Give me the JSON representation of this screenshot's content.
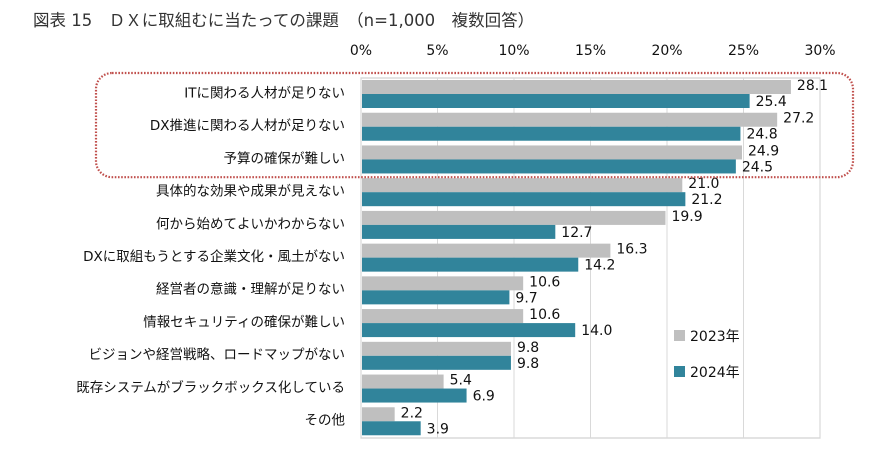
{
  "chart_data": {
    "type": "bar",
    "orientation": "horizontal",
    "title": "図表 15　ＤＸに取組むに当たっての課題　（n=1,000　複数回答）",
    "xlabel": "",
    "ylabel": "",
    "xlim": [
      0,
      30
    ],
    "x_ticks": [
      0,
      5,
      10,
      15,
      20,
      25,
      30
    ],
    "x_tick_labels": [
      "0%",
      "5%",
      "10%",
      "15%",
      "20%",
      "25%",
      "30%"
    ],
    "grid": true,
    "legend_position": "bottom-right",
    "categories": [
      "ITに関わる人材が足りない",
      "DX推進に関わる人材が足りない",
      "予算の確保が難しい",
      "具体的な効果や成果が見えない",
      "何から始めてよいかわからない",
      "DXに取組もうとする企業文化・風土がない",
      "経営者の意識・理解が足りない",
      "情報セキュリティの確保が難しい",
      "ビジョンや経営戦略、ロードマップがない",
      "既存システムがブラックボックス化している",
      "その他"
    ],
    "series": [
      {
        "name": "2023年",
        "color": "#BFBFBF",
        "values": [
          28.1,
          27.2,
          24.9,
          21.0,
          19.9,
          16.3,
          10.6,
          10.6,
          9.8,
          5.4,
          2.2
        ],
        "labels": [
          "28.1",
          "27.2",
          "24.9",
          "21.0",
          "19.9",
          "16.3",
          "10.6",
          "10.6",
          "9.8",
          "5.4",
          "2.2"
        ]
      },
      {
        "name": "2024年",
        "color": "#31849B",
        "values": [
          25.4,
          24.8,
          24.5,
          21.2,
          12.7,
          14.2,
          9.7,
          14.0,
          9.8,
          6.9,
          3.9
        ],
        "labels": [
          "25.4",
          "24.8",
          "24.5",
          "21.2",
          "12.7",
          "14.2",
          "9.7",
          "14.0",
          "9.8",
          "6.9",
          "3.9"
        ]
      }
    ],
    "highlight": {
      "categories_index": [
        0,
        1,
        2
      ],
      "color": "#C0504D",
      "style": "dotted rounded box"
    }
  }
}
